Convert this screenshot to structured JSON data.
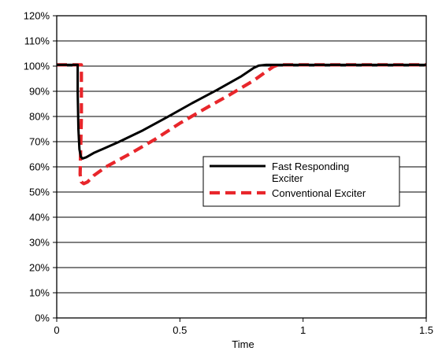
{
  "chart_data": {
    "type": "line",
    "title": "",
    "xlabel": "Time",
    "ylabel": "",
    "xlim": [
      0,
      1.5
    ],
    "ylim": [
      0,
      120
    ],
    "x_ticks": [
      0,
      0.5,
      1,
      1.5
    ],
    "x_tick_labels": [
      "0",
      "0.5",
      "1",
      "1.5"
    ],
    "y_ticks": [
      0,
      10,
      20,
      30,
      40,
      50,
      60,
      70,
      80,
      90,
      100,
      110,
      120
    ],
    "y_tick_labels": [
      "0%",
      "10%",
      "20%",
      "30%",
      "40%",
      "50%",
      "60%",
      "70%",
      "80%",
      "90%",
      "100%",
      "110%",
      "120%"
    ],
    "grid": "horizontal",
    "legend_position": "center-right",
    "series": [
      {
        "name": "Fast Responding Exciter",
        "color": "#000000",
        "style": "solid",
        "points": [
          [
            0,
            100.5
          ],
          [
            0.085,
            100.5
          ],
          [
            0.085,
            90
          ],
          [
            0.088,
            75
          ],
          [
            0.092,
            67
          ],
          [
            0.098,
            64
          ],
          [
            0.105,
            63.3
          ],
          [
            0.12,
            63.8
          ],
          [
            0.15,
            65.5
          ],
          [
            0.25,
            69.8
          ],
          [
            0.35,
            74.5
          ],
          [
            0.45,
            79.8
          ],
          [
            0.55,
            85.3
          ],
          [
            0.65,
            90.5
          ],
          [
            0.75,
            96
          ],
          [
            0.8,
            99.3
          ],
          [
            0.82,
            100.2
          ],
          [
            0.85,
            100.5
          ],
          [
            1.5,
            100.5
          ]
        ]
      },
      {
        "name": "Conventional Exciter",
        "color": "#e8262b",
        "style": "dashed",
        "points": [
          [
            0,
            100.5
          ],
          [
            0.1,
            100.5
          ],
          [
            0.1,
            80
          ],
          [
            0.095,
            57
          ],
          [
            0.1,
            54
          ],
          [
            0.11,
            53.3
          ],
          [
            0.125,
            54
          ],
          [
            0.15,
            56.5
          ],
          [
            0.2,
            60
          ],
          [
            0.3,
            65.3
          ],
          [
            0.4,
            71
          ],
          [
            0.5,
            77.3
          ],
          [
            0.6,
            83
          ],
          [
            0.7,
            88.5
          ],
          [
            0.8,
            94.3
          ],
          [
            0.85,
            97.8
          ],
          [
            0.88,
            99.8
          ],
          [
            0.9,
            100.5
          ],
          [
            1.5,
            100.5
          ]
        ]
      }
    ]
  }
}
